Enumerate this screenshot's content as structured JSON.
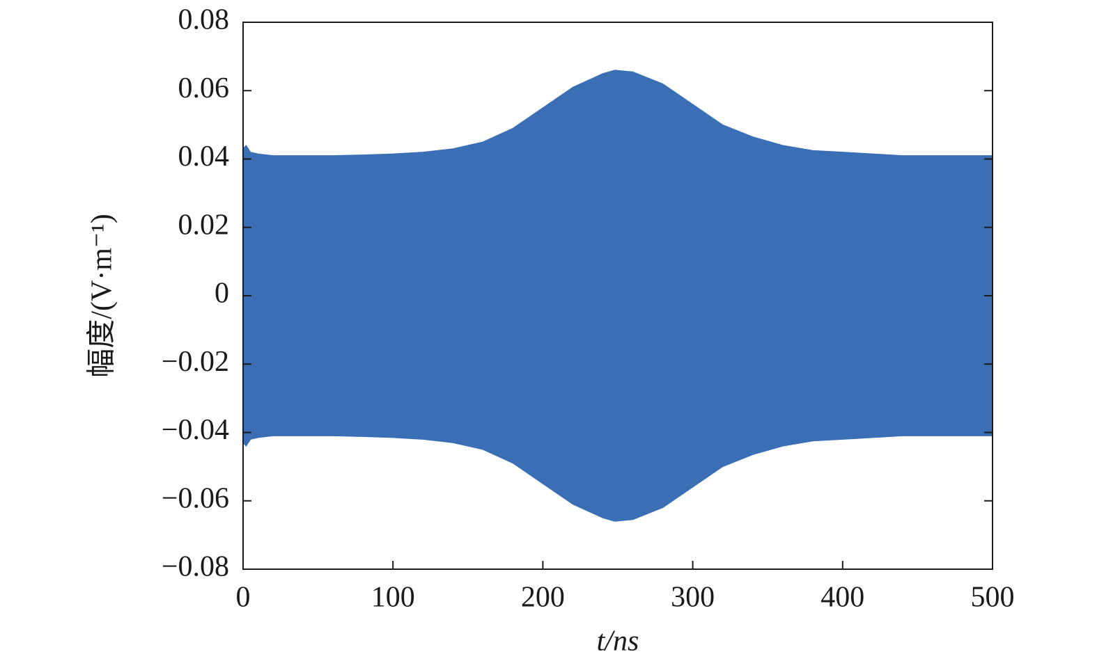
{
  "chart_data": {
    "type": "area",
    "xlabel": "t/ns",
    "ylabel": "幅度/(V·m⁻¹)",
    "x": [
      0,
      2,
      5,
      10,
      20,
      40,
      60,
      80,
      100,
      120,
      140,
      160,
      180,
      200,
      220,
      240,
      248,
      260,
      280,
      300,
      320,
      340,
      360,
      380,
      400,
      420,
      440,
      460,
      480,
      500
    ],
    "series": [
      {
        "color": "#3a6fb6",
        "values": [
          0.043,
          0.044,
          0.042,
          0.0415,
          0.041,
          0.041,
          0.041,
          0.0412,
          0.0415,
          0.042,
          0.043,
          0.045,
          0.049,
          0.055,
          0.061,
          0.065,
          0.066,
          0.0655,
          0.062,
          0.056,
          0.05,
          0.0465,
          0.044,
          0.0425,
          0.042,
          0.0415,
          0.041,
          0.041,
          0.041,
          0.041
        ]
      },
      {
        "color": "#3a6fb6",
        "values": [
          -0.043,
          -0.044,
          -0.042,
          -0.0415,
          -0.041,
          -0.041,
          -0.041,
          -0.0412,
          -0.0415,
          -0.042,
          -0.043,
          -0.045,
          -0.049,
          -0.055,
          -0.061,
          -0.065,
          -0.066,
          -0.0655,
          -0.062,
          -0.056,
          -0.05,
          -0.0465,
          -0.044,
          -0.0425,
          -0.042,
          -0.0415,
          -0.041,
          -0.041,
          -0.041,
          -0.041
        ]
      }
    ],
    "xlim": [
      0,
      500
    ],
    "xticks": [
      0,
      100,
      200,
      300,
      400,
      500
    ],
    "ylim": [
      -0.08,
      0.08
    ],
    "yticks": [
      {
        "value": -0.08,
        "label": "−0.08"
      },
      {
        "value": -0.06,
        "label": "−0.06"
      },
      {
        "value": -0.04,
        "label": "−0.04"
      },
      {
        "value": -0.02,
        "label": "−0.02"
      },
      0,
      0.02,
      0.04,
      0.06,
      0.08
    ],
    "grid": false
  }
}
